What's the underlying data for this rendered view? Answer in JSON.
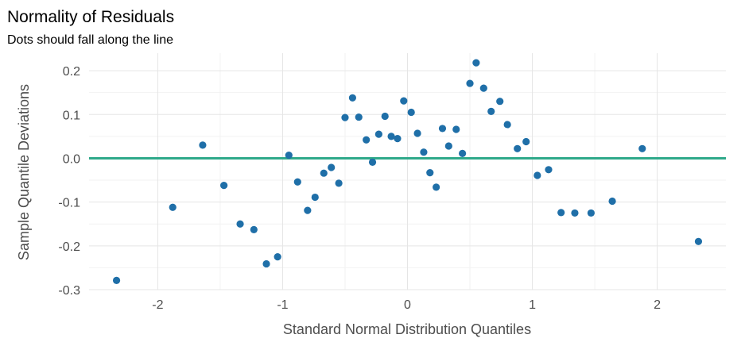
{
  "chart_data": {
    "type": "scatter",
    "title": "Normality of Residuals",
    "subtitle": "Dots should fall along the line",
    "xlabel": "Standard Normal Distribution Quantiles",
    "ylabel": "Sample Quantile Deviations",
    "xlim": [
      -2.55,
      2.55
    ],
    "ylim": [
      -0.3,
      0.24
    ],
    "xticks": [
      -2,
      -1,
      0,
      1,
      2
    ],
    "xtick_labels": [
      "-2",
      "-1",
      "0",
      "1",
      "2"
    ],
    "yticks": [
      -0.3,
      -0.2,
      -0.1,
      0.0,
      0.1,
      0.2
    ],
    "ytick_labels": [
      "-0.3",
      "-0.2",
      "-0.1",
      "0.0",
      "0.1",
      "0.2"
    ],
    "grid": true,
    "reference_line": {
      "y": 0.0,
      "color": "#2fa98a"
    },
    "point_color": "#1f6fa8",
    "points": [
      {
        "x": -2.33,
        "y": -0.279
      },
      {
        "x": -1.88,
        "y": -0.112
      },
      {
        "x": -1.64,
        "y": 0.03
      },
      {
        "x": -1.47,
        "y": -0.062
      },
      {
        "x": -1.34,
        "y": -0.15
      },
      {
        "x": -1.23,
        "y": -0.163
      },
      {
        "x": -1.13,
        "y": -0.241
      },
      {
        "x": -1.04,
        "y": -0.225
      },
      {
        "x": -0.95,
        "y": 0.007
      },
      {
        "x": -0.88,
        "y": -0.054
      },
      {
        "x": -0.8,
        "y": -0.119
      },
      {
        "x": -0.74,
        "y": -0.089
      },
      {
        "x": -0.67,
        "y": -0.034
      },
      {
        "x": -0.61,
        "y": -0.021
      },
      {
        "x": -0.55,
        "y": -0.057
      },
      {
        "x": -0.5,
        "y": 0.093
      },
      {
        "x": -0.44,
        "y": 0.138
      },
      {
        "x": -0.39,
        "y": 0.094
      },
      {
        "x": -0.33,
        "y": 0.042
      },
      {
        "x": -0.28,
        "y": -0.009
      },
      {
        "x": -0.23,
        "y": 0.055
      },
      {
        "x": -0.18,
        "y": 0.096
      },
      {
        "x": -0.13,
        "y": 0.05
      },
      {
        "x": -0.08,
        "y": 0.045
      },
      {
        "x": -0.03,
        "y": 0.131
      },
      {
        "x": 0.03,
        "y": 0.105
      },
      {
        "x": 0.08,
        "y": 0.057
      },
      {
        "x": 0.13,
        "y": 0.014
      },
      {
        "x": 0.18,
        "y": -0.033
      },
      {
        "x": 0.23,
        "y": -0.066
      },
      {
        "x": 0.28,
        "y": 0.068
      },
      {
        "x": 0.33,
        "y": 0.028
      },
      {
        "x": 0.39,
        "y": 0.066
      },
      {
        "x": 0.44,
        "y": 0.011
      },
      {
        "x": 0.5,
        "y": 0.171
      },
      {
        "x": 0.55,
        "y": 0.218
      },
      {
        "x": 0.61,
        "y": 0.16
      },
      {
        "x": 0.67,
        "y": 0.107
      },
      {
        "x": 0.74,
        "y": 0.13
      },
      {
        "x": 0.8,
        "y": 0.077
      },
      {
        "x": 0.88,
        "y": 0.022
      },
      {
        "x": 0.95,
        "y": 0.038
      },
      {
        "x": 1.04,
        "y": -0.039
      },
      {
        "x": 1.13,
        "y": -0.026
      },
      {
        "x": 1.23,
        "y": -0.124
      },
      {
        "x": 1.34,
        "y": -0.125
      },
      {
        "x": 1.47,
        "y": -0.125
      },
      {
        "x": 1.64,
        "y": -0.098
      },
      {
        "x": 1.88,
        "y": 0.022
      },
      {
        "x": 2.33,
        "y": -0.19
      }
    ]
  }
}
